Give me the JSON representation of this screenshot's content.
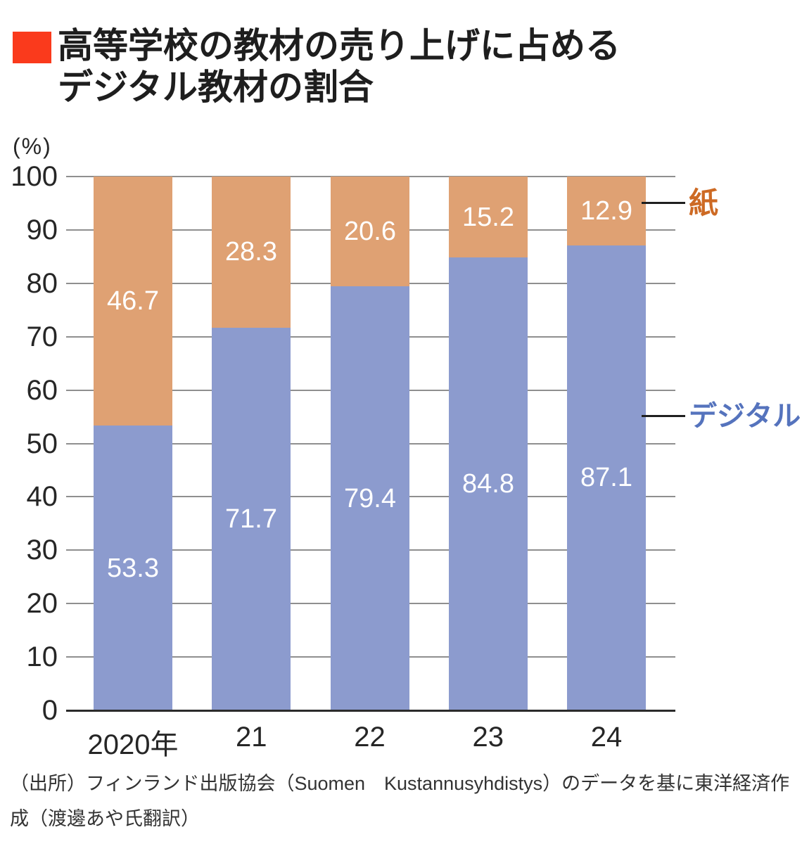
{
  "title": {
    "line1": "高等学校の教材の売り上げに占める",
    "line2": "デジタル教材の割合"
  },
  "unit_label": "(%)",
  "chart_data": {
    "type": "bar",
    "stacked": true,
    "title": "高等学校の教材の売り上げに占めるデジタル教材の割合",
    "categories": [
      "2020年",
      "21",
      "22",
      "23",
      "24"
    ],
    "series": [
      {
        "name": "デジタル",
        "values": [
          53.3,
          71.7,
          79.4,
          84.8,
          87.1
        ],
        "color": "#8c9bce"
      },
      {
        "name": "紙",
        "values": [
          46.7,
          28.3,
          20.6,
          15.2,
          12.9
        ],
        "color": "#dfa173"
      }
    ],
    "ylabel": "(%)",
    "ylim": [
      0,
      100
    ],
    "yticks": [
      0,
      10,
      20,
      30,
      40,
      50,
      60,
      70,
      80,
      90,
      100
    ],
    "grid": true,
    "value_labels": true,
    "value_label_color": "#ffffff",
    "legend_position": "right"
  },
  "legend": {
    "paper": {
      "label": "紙",
      "color": "#cd6a24"
    },
    "digital": {
      "label": "デジタル",
      "color": "#5573bd"
    }
  },
  "colors": {
    "title_bullet": "#fa3a1c",
    "axis_line": "#2b2b2b",
    "gridline": "#8f8f8f",
    "tick_label": "#262626"
  },
  "source": {
    "line1": "（出所）フィンランド出版協会（Suomen　Kustannusyhdistys）のデータを基に東洋経済作",
    "line2": "成（渡邊あや氏翻訳）"
  }
}
